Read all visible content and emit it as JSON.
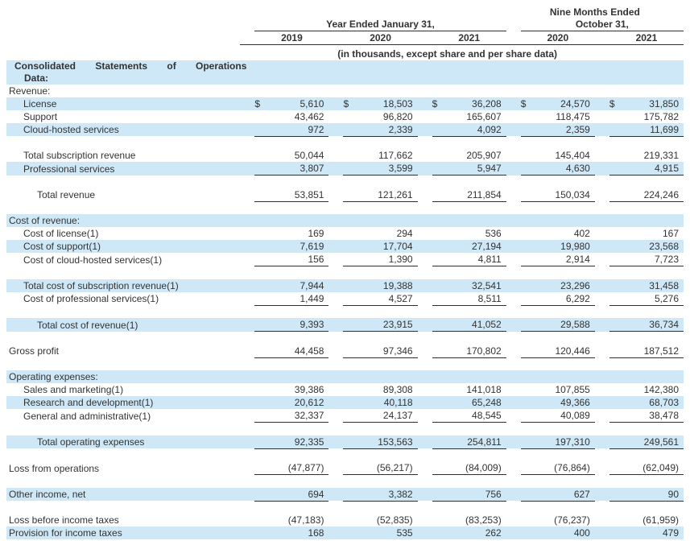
{
  "colors": {
    "stripe_blue": "#cfe8f7",
    "text": "#333333",
    "rule": "#2f2f2f"
  },
  "header": {
    "left_group": "Year Ended January 31,",
    "right_group_line1": "Nine Months Ended",
    "right_group_line2": "October 31,",
    "years": [
      "2019",
      "2020",
      "2021",
      "2020",
      "2021"
    ],
    "units_note": "(in thousands, except share and per share data)"
  },
  "table": {
    "currency_symbol": "$",
    "title_line1": "Consolidated Statements of Operations",
    "title_line2": "Data:",
    "rows": [
      {
        "label": "Revenue:",
        "indent": 0,
        "bg": "white"
      },
      {
        "label": "License",
        "indent": 1,
        "bg": "blue",
        "dollar": true,
        "values": [
          "5,610",
          "18,503",
          "36,208",
          "24,570",
          "31,850"
        ]
      },
      {
        "label": "Support",
        "indent": 1,
        "bg": "white",
        "values": [
          "43,462",
          "96,820",
          "165,607",
          "118,475",
          "175,782"
        ]
      },
      {
        "label": "Cloud-hosted services",
        "indent": 1,
        "bg": "blue",
        "rule": true,
        "values": [
          "972",
          "2,339",
          "4,092",
          "2,359",
          "11,699"
        ]
      },
      {
        "type": "spacer"
      },
      {
        "label": "Total subscription revenue",
        "indent": 1,
        "bg": "white",
        "values": [
          "50,044",
          "117,662",
          "205,907",
          "145,404",
          "219,331"
        ]
      },
      {
        "label": "Professional services",
        "indent": 1,
        "bg": "blue",
        "rule": true,
        "values": [
          "3,807",
          "3,599",
          "5,947",
          "4,630",
          "4,915"
        ]
      },
      {
        "type": "spacer"
      },
      {
        "label": "Total revenue",
        "indent": 2,
        "bg": "white",
        "rule": true,
        "values": [
          "53,851",
          "121,261",
          "211,854",
          "150,034",
          "224,246"
        ]
      },
      {
        "type": "spacer"
      },
      {
        "label": "Cost of revenue:",
        "indent": 0,
        "bg": "blue"
      },
      {
        "label": "Cost of license(1)",
        "indent": 1,
        "bg": "white",
        "values": [
          "169",
          "294",
          "536",
          "402",
          "167"
        ]
      },
      {
        "label": "Cost of support(1)",
        "indent": 1,
        "bg": "blue",
        "values": [
          "7,619",
          "17,704",
          "27,194",
          "19,980",
          "23,568"
        ]
      },
      {
        "label": "Cost of cloud-hosted services(1)",
        "indent": 1,
        "bg": "white",
        "rule": true,
        "values": [
          "156",
          "1,390",
          "4,811",
          "2,914",
          "7,723"
        ]
      },
      {
        "type": "spacer"
      },
      {
        "label": "Total cost of subscription revenue(1)",
        "indent": 1,
        "bg": "blue",
        "values": [
          "7,944",
          "19,388",
          "32,541",
          "23,296",
          "31,458"
        ]
      },
      {
        "label": "Cost of professional services(1)",
        "indent": 1,
        "bg": "white",
        "rule": true,
        "values": [
          "1,449",
          "4,527",
          "8,511",
          "6,292",
          "5,276"
        ]
      },
      {
        "type": "spacer"
      },
      {
        "label": "Total cost of revenue(1)",
        "indent": 2,
        "bg": "blue",
        "rule": true,
        "values": [
          "9,393",
          "23,915",
          "41,052",
          "29,588",
          "36,734"
        ]
      },
      {
        "type": "spacer"
      },
      {
        "label": "Gross profit",
        "indent": 0,
        "bg": "white",
        "rule": true,
        "values": [
          "44,458",
          "97,346",
          "170,802",
          "120,446",
          "187,512"
        ]
      },
      {
        "type": "spacer"
      },
      {
        "label": "Operating expenses:",
        "indent": 0,
        "bg": "blue"
      },
      {
        "label": "Sales and marketing(1)",
        "indent": 1,
        "bg": "white",
        "values": [
          "39,386",
          "89,308",
          "141,018",
          "107,855",
          "142,380"
        ]
      },
      {
        "label": "Research and development(1)",
        "indent": 1,
        "bg": "blue",
        "values": [
          "20,612",
          "40,118",
          "65,248",
          "49,366",
          "68,703"
        ]
      },
      {
        "label": "General and administrative(1)",
        "indent": 1,
        "bg": "white",
        "rule": true,
        "values": [
          "32,337",
          "24,137",
          "48,545",
          "40,089",
          "38,478"
        ]
      },
      {
        "type": "spacer"
      },
      {
        "label": "Total operating expenses",
        "indent": 2,
        "bg": "blue",
        "rule": true,
        "values": [
          "92,335",
          "153,563",
          "254,811",
          "197,310",
          "249,561"
        ]
      },
      {
        "type": "spacer"
      },
      {
        "label": "Loss from operations",
        "indent": 0,
        "bg": "white",
        "rule": true,
        "values": [
          "(47,877)",
          "(56,217)",
          "(84,009)",
          "(76,864)",
          "(62,049)"
        ]
      },
      {
        "type": "spacer"
      },
      {
        "label": "Other income, net",
        "indent": 0,
        "bg": "blue",
        "rule": true,
        "values": [
          "694",
          "3,382",
          "756",
          "627",
          "90"
        ]
      },
      {
        "type": "spacer"
      },
      {
        "label": "Loss before income taxes",
        "indent": 0,
        "bg": "white",
        "values": [
          "(47,183)",
          "(52,835)",
          "(83,253)",
          "(76,237)",
          "(61,959)"
        ]
      },
      {
        "label": "Provision for income taxes",
        "indent": 0,
        "bg": "blue",
        "values": [
          "168",
          "535",
          "262",
          "400",
          "479"
        ]
      }
    ]
  }
}
